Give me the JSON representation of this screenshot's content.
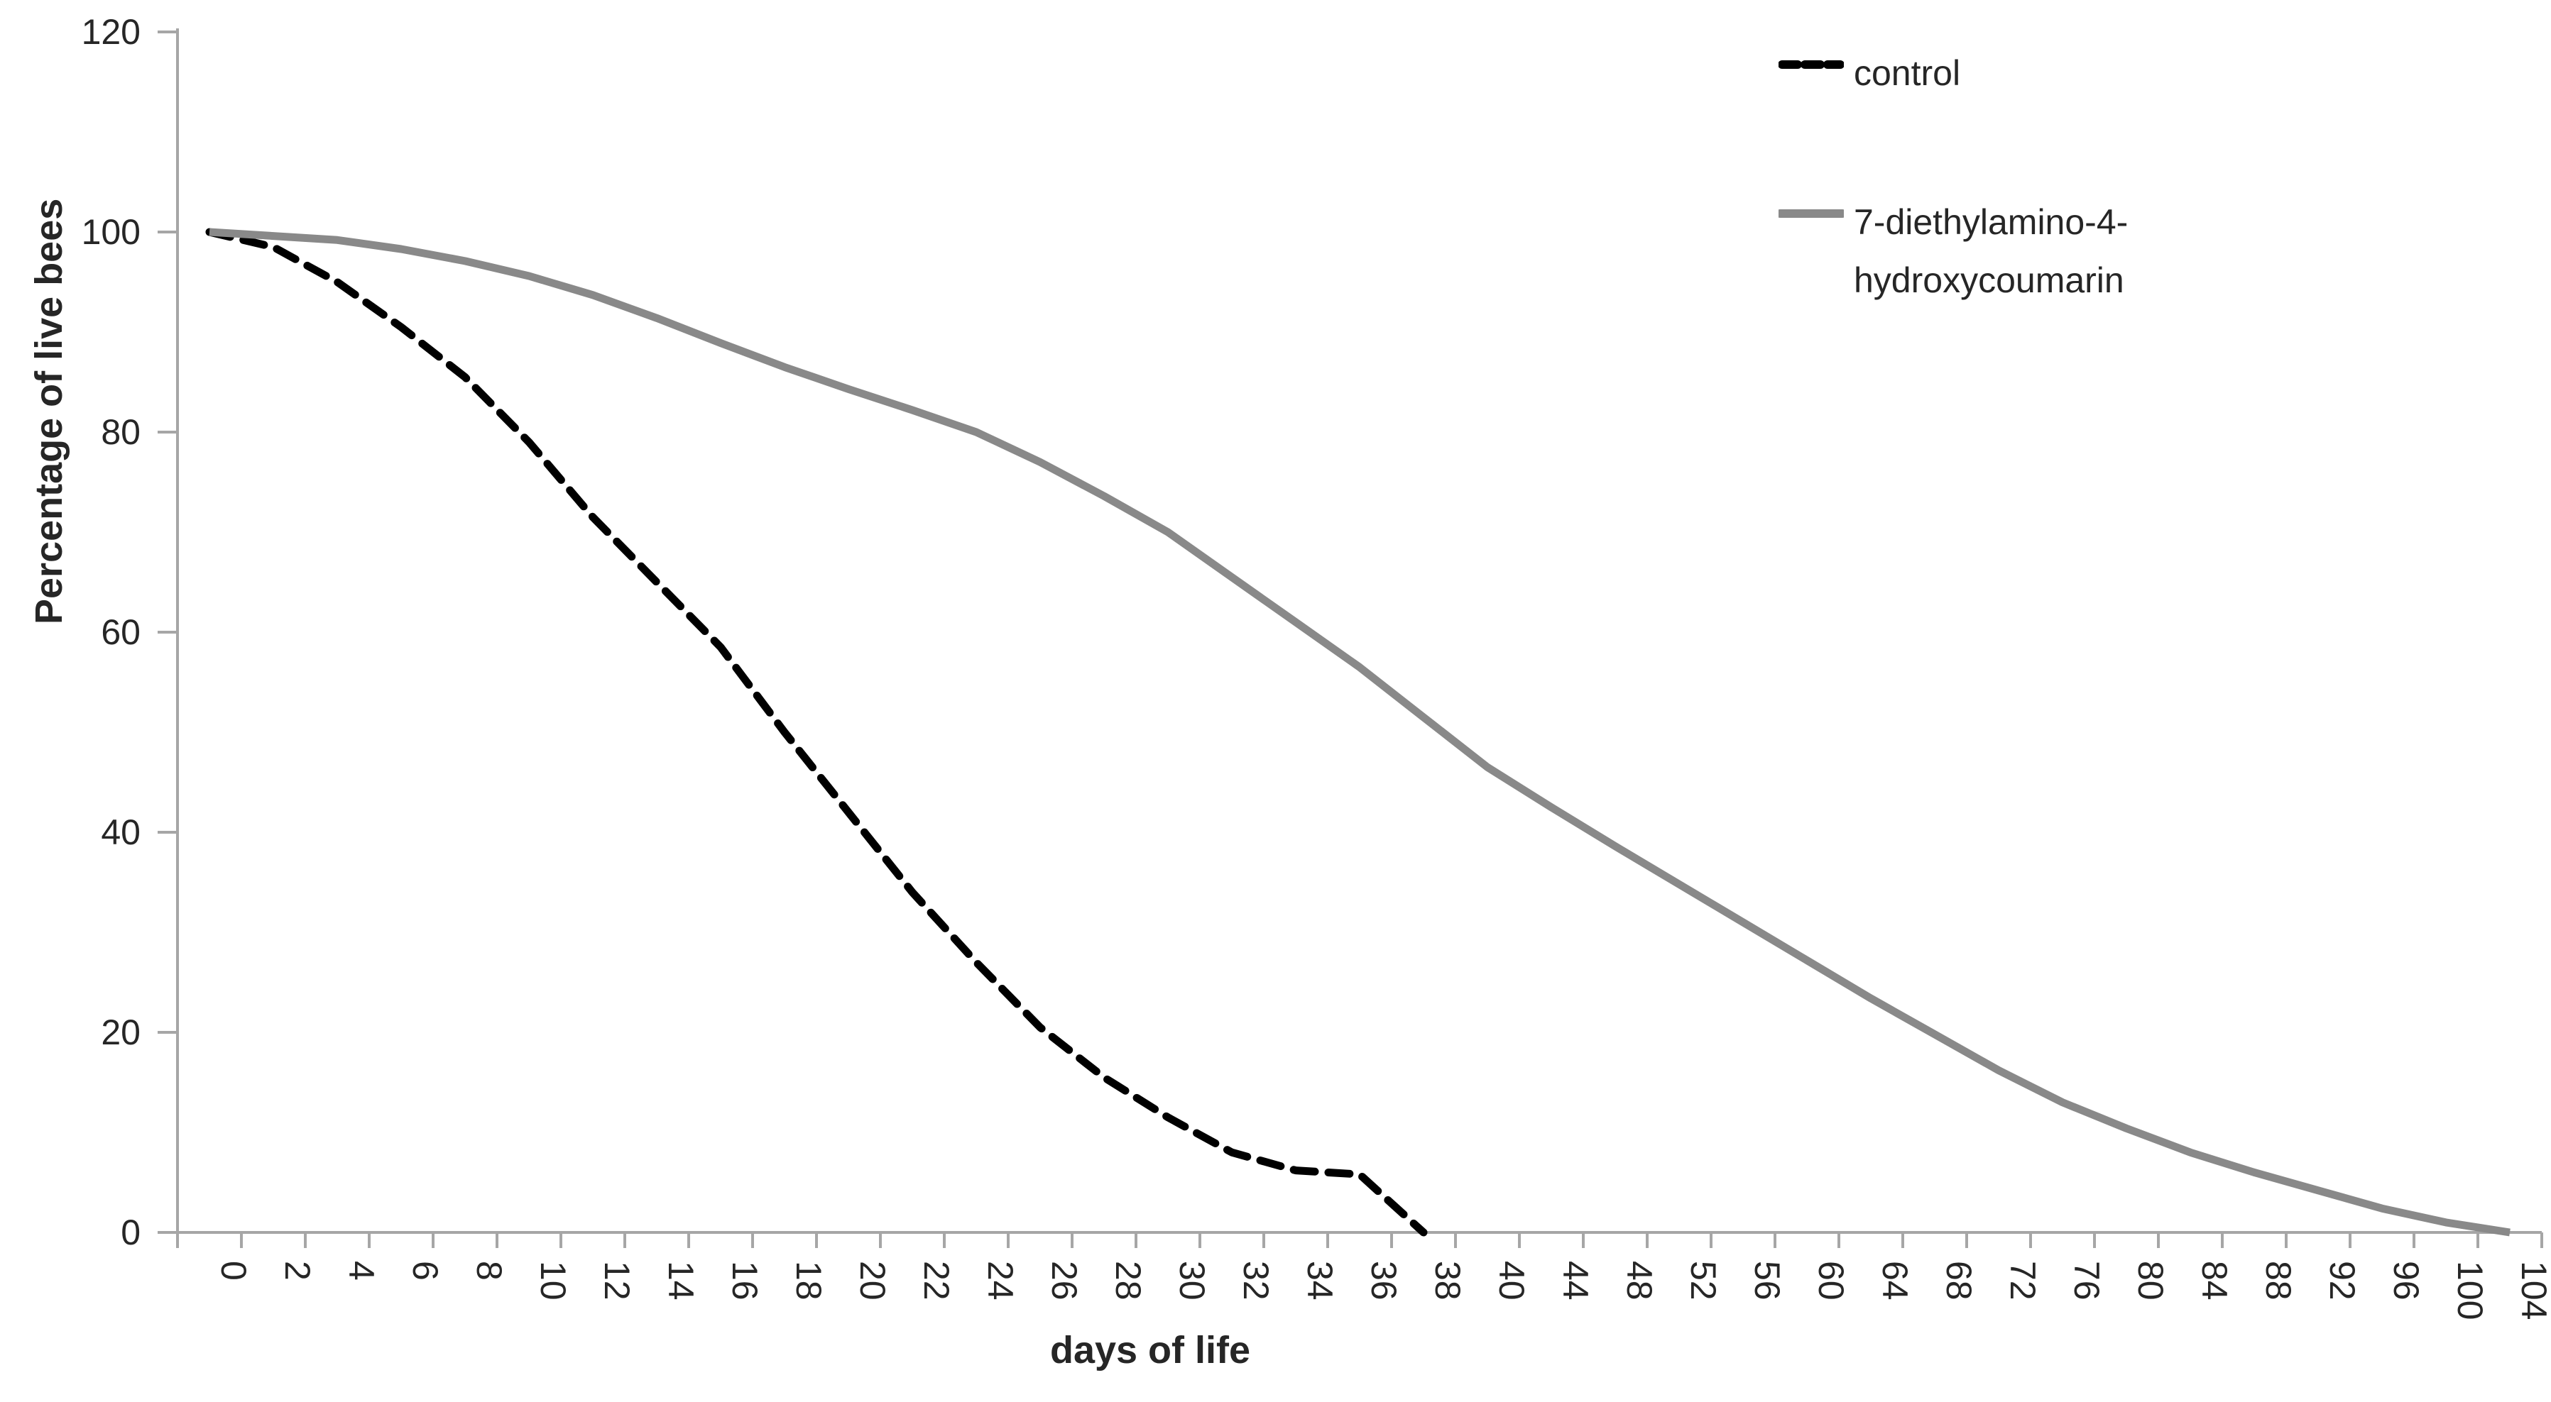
{
  "chart_data": {
    "type": "line",
    "title": "",
    "xlabel": "days of life",
    "ylabel": "Percentage of live bees",
    "ylim": [
      0,
      120
    ],
    "ytick_step": 20,
    "y_tick_labels": [
      "0",
      "20",
      "40",
      "60",
      "80",
      "100",
      "120"
    ],
    "grid": false,
    "legend_position": "top-right",
    "categories": [
      "0",
      "2",
      "4",
      "6",
      "8",
      "10",
      "12",
      "14",
      "16",
      "18",
      "20",
      "22",
      "24",
      "26",
      "28",
      "30",
      "32",
      "34",
      "36",
      "38",
      "40",
      "44",
      "48",
      "52",
      "56",
      "60",
      "64",
      "68",
      "72",
      "76",
      "80",
      "84",
      "88",
      "92",
      "96",
      "100",
      "104"
    ],
    "series": [
      {
        "name": "control",
        "color": "#000000",
        "style": "dashed",
        "values": [
          100,
          98.5,
          95,
          90.5,
          85.5,
          79,
          71.5,
          65,
          58.5,
          50,
          42,
          34,
          27,
          20.5,
          15.5,
          11.5,
          8,
          6.2,
          5.8,
          0,
          null,
          null,
          null,
          null,
          null,
          null,
          null,
          null,
          null,
          null,
          null,
          null,
          null,
          null,
          null,
          null,
          null
        ]
      },
      {
        "name": "7-diethylamino-4-hydroxycoumarin",
        "color": "#898989",
        "style": "solid",
        "values": [
          100,
          99.6,
          99.2,
          98.3,
          97.1,
          95.6,
          93.7,
          91.4,
          88.9,
          86.5,
          84.3,
          82.2,
          80,
          77,
          73.6,
          70,
          65.5,
          61,
          56.5,
          51.5,
          46.5,
          42.5,
          38.6,
          34.8,
          31,
          27.2,
          23.4,
          19.8,
          16.2,
          13,
          10.4,
          8,
          6,
          4.2,
          2.4,
          1,
          0
        ]
      }
    ]
  },
  "axes": {
    "x_title": "days of life",
    "y_title": "Percentage of live bees"
  },
  "legend": {
    "control_label": "control",
    "treatment_label_line1": "7-diethylamino-4-",
    "treatment_label_line2": "hydroxycoumarin"
  },
  "colors": {
    "control_line": "#000000",
    "treatment_line": "#898989",
    "axis_line": "#a6a6a6",
    "text": "#262626",
    "background": "#ffffff"
  }
}
